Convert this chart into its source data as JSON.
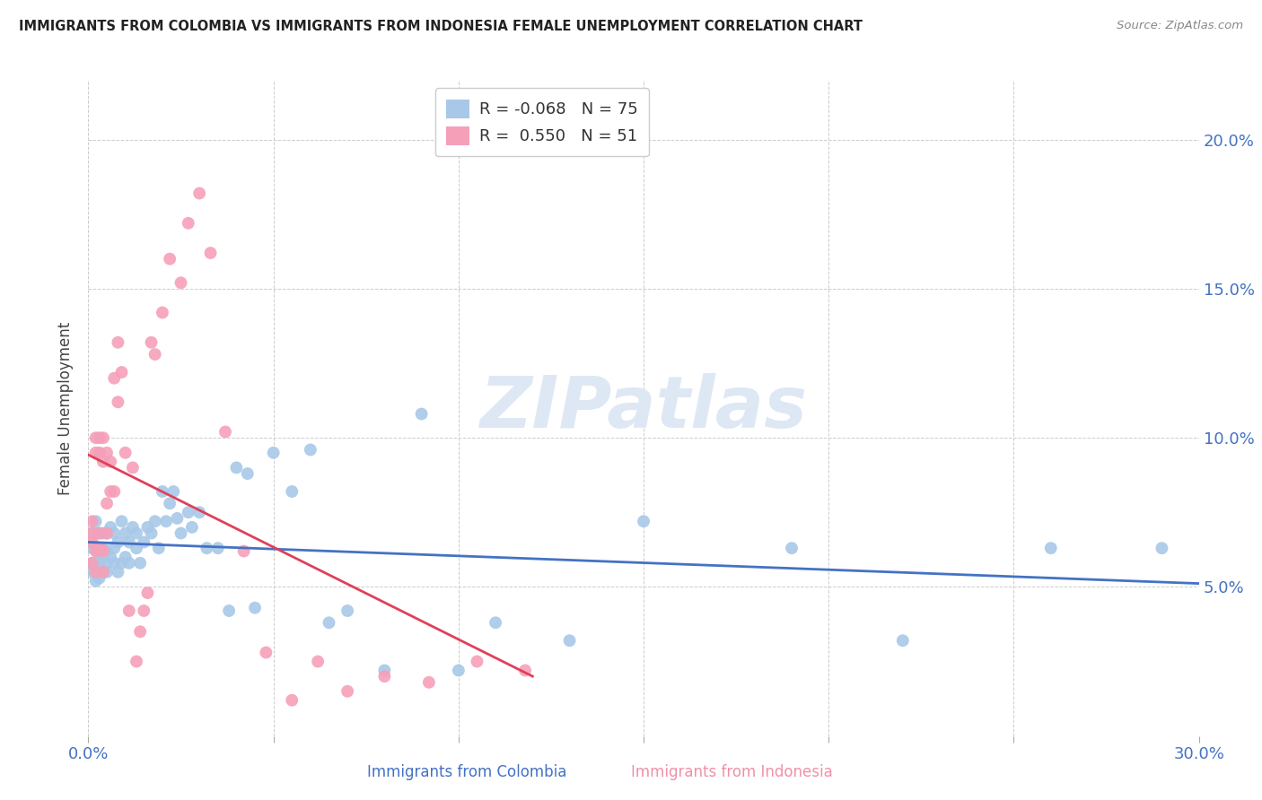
{
  "title": "IMMIGRANTS FROM COLOMBIA VS IMMIGRANTS FROM INDONESIA FEMALE UNEMPLOYMENT CORRELATION CHART",
  "source": "Source: ZipAtlas.com",
  "xlabel_colombia": "Immigrants from Colombia",
  "xlabel_indonesia": "Immigrants from Indonesia",
  "ylabel": "Female Unemployment",
  "watermark": "ZIPatlas",
  "colombia_R": -0.068,
  "colombia_N": 75,
  "indonesia_R": 0.55,
  "indonesia_N": 51,
  "colombia_color": "#a8c8e8",
  "indonesia_color": "#f5a0b8",
  "colombia_line_color": "#4472c4",
  "indonesia_line_color": "#e0405a",
  "right_label_color": "#4472c4",
  "bottom_label_color_colombia": "#4472c4",
  "bottom_label_color_indonesia": "#f090a8",
  "xlim": [
    0.0,
    0.3
  ],
  "ylim": [
    0.0,
    0.22
  ],
  "yticks": [
    0.05,
    0.1,
    0.15,
    0.2
  ],
  "ytick_labels": [
    "5.0%",
    "10.0%",
    "15.0%",
    "20.0%"
  ],
  "xtick_labels": [
    "0.0%",
    "30.0%"
  ],
  "colombia_x": [
    0.001,
    0.001,
    0.001,
    0.001,
    0.002,
    0.002,
    0.002,
    0.002,
    0.002,
    0.003,
    0.003,
    0.003,
    0.003,
    0.003,
    0.003,
    0.004,
    0.004,
    0.004,
    0.004,
    0.005,
    0.005,
    0.005,
    0.005,
    0.006,
    0.006,
    0.007,
    0.007,
    0.007,
    0.008,
    0.008,
    0.009,
    0.009,
    0.01,
    0.01,
    0.011,
    0.011,
    0.012,
    0.013,
    0.013,
    0.014,
    0.015,
    0.016,
    0.017,
    0.018,
    0.019,
    0.02,
    0.021,
    0.022,
    0.023,
    0.024,
    0.025,
    0.027,
    0.028,
    0.03,
    0.032,
    0.035,
    0.038,
    0.04,
    0.043,
    0.045,
    0.05,
    0.055,
    0.06,
    0.065,
    0.07,
    0.08,
    0.09,
    0.1,
    0.11,
    0.13,
    0.15,
    0.19,
    0.22,
    0.26,
    0.29
  ],
  "colombia_y": [
    0.063,
    0.058,
    0.068,
    0.055,
    0.052,
    0.058,
    0.063,
    0.068,
    0.072,
    0.055,
    0.06,
    0.063,
    0.068,
    0.058,
    0.053,
    0.055,
    0.06,
    0.063,
    0.068,
    0.058,
    0.062,
    0.068,
    0.055,
    0.06,
    0.07,
    0.058,
    0.063,
    0.068,
    0.055,
    0.065,
    0.058,
    0.072,
    0.06,
    0.068,
    0.058,
    0.065,
    0.07,
    0.063,
    0.068,
    0.058,
    0.065,
    0.07,
    0.068,
    0.072,
    0.063,
    0.082,
    0.072,
    0.078,
    0.082,
    0.073,
    0.068,
    0.075,
    0.07,
    0.075,
    0.063,
    0.063,
    0.042,
    0.09,
    0.088,
    0.043,
    0.095,
    0.082,
    0.096,
    0.038,
    0.042,
    0.022,
    0.108,
    0.022,
    0.038,
    0.032,
    0.072,
    0.063,
    0.032,
    0.063,
    0.063
  ],
  "indonesia_x": [
    0.001,
    0.001,
    0.001,
    0.001,
    0.002,
    0.002,
    0.002,
    0.002,
    0.003,
    0.003,
    0.003,
    0.003,
    0.004,
    0.004,
    0.004,
    0.004,
    0.005,
    0.005,
    0.005,
    0.006,
    0.006,
    0.007,
    0.007,
    0.008,
    0.008,
    0.009,
    0.01,
    0.011,
    0.012,
    0.013,
    0.014,
    0.015,
    0.016,
    0.017,
    0.018,
    0.02,
    0.022,
    0.025,
    0.027,
    0.03,
    0.033,
    0.037,
    0.042,
    0.048,
    0.055,
    0.062,
    0.07,
    0.08,
    0.092,
    0.105,
    0.118
  ],
  "indonesia_y": [
    0.058,
    0.065,
    0.068,
    0.072,
    0.055,
    0.062,
    0.095,
    0.1,
    0.063,
    0.068,
    0.1,
    0.095,
    0.062,
    0.092,
    0.1,
    0.055,
    0.068,
    0.095,
    0.078,
    0.082,
    0.092,
    0.082,
    0.12,
    0.112,
    0.132,
    0.122,
    0.095,
    0.042,
    0.09,
    0.025,
    0.035,
    0.042,
    0.048,
    0.132,
    0.128,
    0.142,
    0.16,
    0.152,
    0.172,
    0.182,
    0.162,
    0.102,
    0.062,
    0.028,
    0.012,
    0.025,
    0.015,
    0.02,
    0.018,
    0.025,
    0.022
  ]
}
